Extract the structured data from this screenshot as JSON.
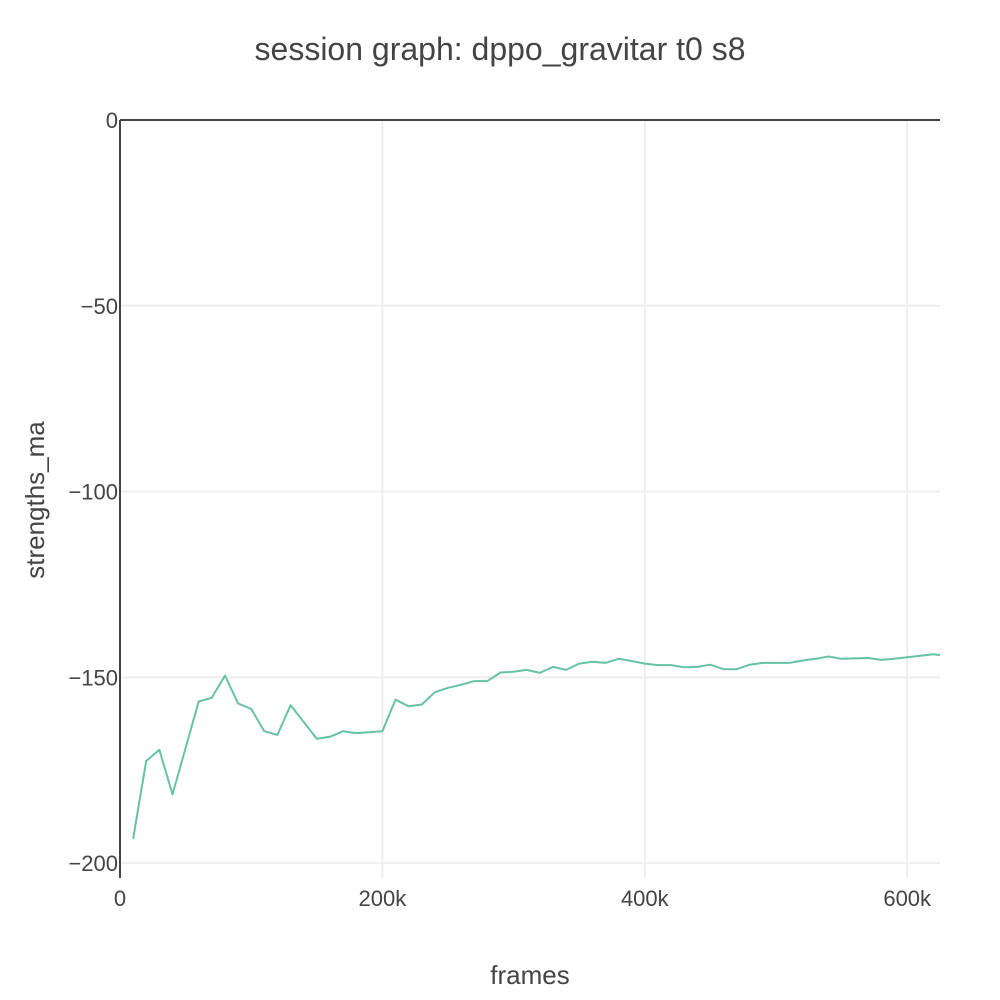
{
  "chart_data": {
    "type": "line",
    "title": "session graph: dppo_gravitar t0 s8",
    "xlabel": "frames",
    "ylabel": "strengths_ma",
    "xlim": [
      0,
      625000
    ],
    "ylim": [
      -204,
      0
    ],
    "xticks": [
      0,
      200000,
      400000,
      600000
    ],
    "xtick_labels": [
      "0",
      "200k",
      "400k",
      "600k"
    ],
    "yticks": [
      0,
      -50,
      -100,
      -150,
      -200
    ],
    "ytick_labels": [
      "0",
      "−50",
      "−100",
      "−150",
      "−200"
    ],
    "grid": true,
    "legend": "none",
    "series": [
      {
        "color": "#66c2a5",
        "x": [
          10000,
          20000,
          30000,
          40000,
          50000,
          60000,
          70000,
          80000,
          90000,
          100000,
          110000,
          120000,
          130000,
          140000,
          150000,
          160000,
          170000,
          180000,
          190000,
          200000,
          210000,
          220000,
          230000,
          240000,
          250000,
          260000,
          270000,
          280000,
          290000,
          300000,
          310000,
          320000,
          330000,
          340000,
          350000,
          360000,
          370000,
          380000,
          390000,
          400000,
          410000,
          420000,
          430000,
          440000,
          450000,
          460000,
          470000,
          480000,
          490000,
          500000,
          510000,
          520000,
          530000,
          540000,
          550000,
          560000,
          570000,
          580000,
          590000,
          600000,
          610000,
          620000,
          625000
        ],
        "y": [
          -193.5,
          -172.5,
          -169.5,
          -181.5,
          -169,
          -156.5,
          -155.5,
          -149.5,
          -157,
          -158.5,
          -164.5,
          -165.5,
          -157.5,
          -162,
          -166.5,
          -166,
          -164.5,
          -165,
          -164.8,
          -164.5,
          -156,
          -157.8,
          -157.3,
          -154,
          -152.8,
          -152,
          -151,
          -151,
          -148.7,
          -148.5,
          -148,
          -148.8,
          -147.2,
          -148,
          -146.3,
          -145.8,
          -146.1,
          -145,
          -145.6,
          -146.3,
          -146.7,
          -146.7,
          -147.3,
          -147.2,
          -146.6,
          -147.8,
          -147.8,
          -146.6,
          -146.1,
          -146.1,
          -146.1,
          -145.5,
          -145,
          -144.4,
          -145,
          -144.9,
          -144.8,
          -145.3,
          -145,
          -144.6,
          -144.2,
          -143.8,
          -144
        ]
      }
    ]
  }
}
